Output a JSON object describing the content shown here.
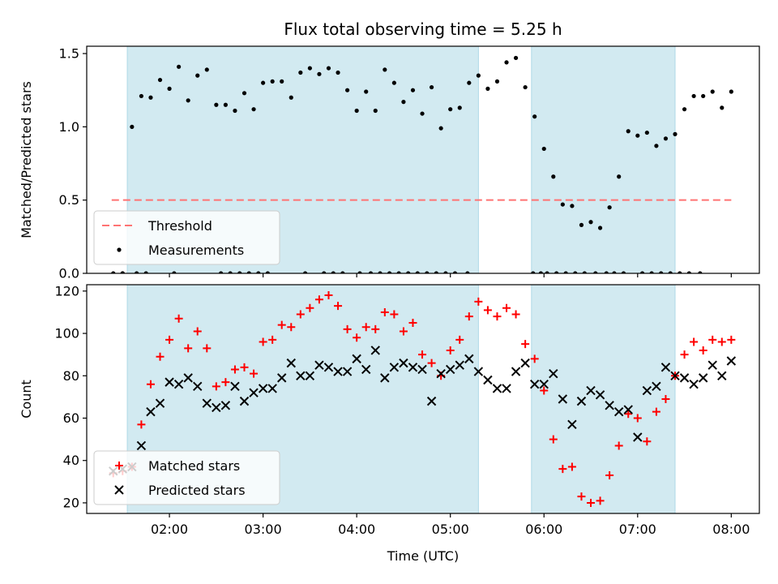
{
  "title": "Flux total observing time = 5.25 h",
  "colors": {
    "shade": "#add8e6",
    "threshold": "#ff7373",
    "matched": "#ff0000",
    "predicted": "#000000",
    "measurement": "#000000"
  },
  "chart_data": [
    {
      "type": "scatter",
      "ylabel": "Matched/Predicted stars",
      "xlim": [
        "01:07",
        "08:18"
      ],
      "ylim": [
        0,
        1.55
      ],
      "yticks": [
        "0.0",
        "0.5",
        "1.0",
        "1.5"
      ],
      "shaded_intervals": [
        [
          "01:33",
          "05:18"
        ],
        [
          "05:52",
          "07:24"
        ]
      ],
      "threshold": {
        "y": 0.5,
        "x_range": [
          "01:23",
          "08:00"
        ]
      },
      "legend": {
        "placement": "lower-left",
        "entries": [
          "Threshold",
          "Measurements"
        ]
      },
      "series": [
        {
          "name": "Measurements",
          "x": [
            "01:24",
            "01:30",
            "01:36",
            "01:42",
            "01:48",
            "01:54",
            "02:00",
            "02:06",
            "02:12",
            "02:18",
            "02:24",
            "02:30",
            "02:36",
            "02:42",
            "02:48",
            "02:54",
            "03:00",
            "03:06",
            "03:12",
            "03:18",
            "03:24",
            "03:30",
            "03:36",
            "03:42",
            "03:48",
            "03:54",
            "04:00",
            "04:06",
            "04:12",
            "04:18",
            "04:24",
            "04:30",
            "04:36",
            "04:42",
            "04:48",
            "04:54",
            "05:00",
            "05:06",
            "05:12",
            "05:18",
            "05:24",
            "05:30",
            "05:36",
            "05:42",
            "05:48",
            "05:54",
            "06:00",
            "06:06",
            "06:12",
            "06:18",
            "06:24",
            "06:30",
            "06:36",
            "06:42",
            "06:48",
            "06:54",
            "07:00",
            "07:06",
            "07:12",
            "07:18",
            "07:24",
            "07:30",
            "07:36",
            "07:42",
            "07:48",
            "07:54",
            "08:00",
            "01:30",
            "01:39",
            "01:45",
            "02:03",
            "05:53",
            "06:33",
            "06:45",
            "06:51",
            "07:03",
            "07:15",
            "07:21",
            "07:27",
            "05:58",
            "06:02",
            "06:08",
            "06:14",
            "06:20",
            "06:26",
            "06:40",
            "07:09",
            "07:33",
            "07:40",
            "05:03",
            "05:11",
            "03:03",
            "02:57",
            "02:51",
            "02:45",
            "02:39",
            "02:33",
            "03:27",
            "03:39",
            "03:45",
            "03:51",
            "04:02",
            "04:09",
            "04:15",
            "04:21",
            "04:27",
            "04:33",
            "04:39",
            "04:45",
            "04:51",
            "04:57"
          ],
          "y": [
            0.0,
            0.0,
            1.0,
            1.21,
            1.2,
            1.32,
            1.26,
            1.41,
            1.18,
            1.35,
            1.39,
            1.15,
            1.15,
            1.11,
            1.23,
            1.12,
            1.3,
            1.31,
            1.31,
            1.2,
            1.37,
            1.4,
            1.36,
            1.4,
            1.37,
            1.25,
            1.11,
            1.24,
            1.11,
            1.39,
            1.3,
            1.17,
            1.25,
            1.09,
            1.27,
            0.99,
            1.12,
            1.13,
            1.3,
            1.35,
            1.26,
            1.31,
            1.44,
            1.47,
            1.27,
            1.07,
            0.85,
            0.66,
            0.47,
            0.46,
            0.33,
            0.35,
            0.31,
            0.45,
            0.66,
            0.97,
            0.94,
            0.96,
            0.87,
            0.92,
            0.95,
            1.12,
            1.21,
            1.21,
            1.24,
            1.13,
            1.24,
            0.0,
            0.0,
            0.0,
            0.0,
            0.0,
            0.0,
            0.0,
            0.0,
            0.0,
            0.0,
            0.0,
            0.0,
            0.0,
            0.0,
            0.0,
            0.0,
            0.0,
            0.0,
            0.0,
            0.0,
            0.0,
            0.0,
            0.0,
            0.0,
            0.0,
            0.0,
            0.0,
            0.0,
            0.0,
            0.0,
            0.0,
            0.0,
            0.0,
            0.0,
            0.0,
            0.0,
            0.0,
            0.0,
            0.0,
            0.0,
            0.0,
            0.0,
            0.0,
            0.0
          ]
        }
      ]
    },
    {
      "type": "scatter",
      "xlabel": "Time (UTC)",
      "ylabel": "Count",
      "xlim": [
        "01:07",
        "08:18"
      ],
      "ylim": [
        15,
        123
      ],
      "yticks": [
        "20",
        "40",
        "60",
        "80",
        "100",
        "120"
      ],
      "xticks": [
        "02:00",
        "03:00",
        "04:00",
        "05:00",
        "06:00",
        "07:00",
        "08:00"
      ],
      "shaded_intervals": [
        [
          "01:33",
          "05:18"
        ],
        [
          "05:52",
          "07:24"
        ]
      ],
      "legend": {
        "placement": "lower-left",
        "entries": [
          "Matched stars",
          "Predicted stars"
        ]
      },
      "series": [
        {
          "name": "Matched stars",
          "x": [
            "01:24",
            "01:30",
            "01:36",
            "01:42",
            "01:48",
            "01:54",
            "02:00",
            "02:06",
            "02:12",
            "02:18",
            "02:24",
            "02:30",
            "02:36",
            "02:42",
            "02:48",
            "02:54",
            "03:00",
            "03:06",
            "03:12",
            "03:18",
            "03:24",
            "03:30",
            "03:36",
            "03:42",
            "03:48",
            "03:54",
            "04:00",
            "04:06",
            "04:12",
            "04:18",
            "04:24",
            "04:30",
            "04:36",
            "04:42",
            "04:48",
            "04:54",
            "05:00",
            "05:06",
            "05:12",
            "05:18",
            "05:24",
            "05:30",
            "05:36",
            "05:42",
            "05:48",
            "05:54",
            "06:00",
            "06:06",
            "06:12",
            "06:18",
            "06:24",
            "06:30",
            "06:36",
            "06:42",
            "06:48",
            "06:54",
            "07:00",
            "07:06",
            "07:12",
            "07:18",
            "07:24",
            "07:30",
            "07:36",
            "07:42",
            "07:48",
            "07:54",
            "08:00"
          ],
          "y": [
            34,
            35,
            37,
            57,
            76,
            89,
            97,
            107,
            93,
            101,
            93,
            75,
            77,
            83,
            84,
            81,
            96,
            97,
            104,
            103,
            109,
            112,
            116,
            118,
            113,
            102,
            98,
            103,
            102,
            110,
            109,
            101,
            105,
            90,
            86,
            80,
            92,
            97,
            108,
            115,
            111,
            108,
            112,
            109,
            95,
            88,
            73,
            50,
            36,
            37,
            23,
            20,
            21,
            33,
            47,
            62,
            60,
            49,
            63,
            69,
            80,
            90,
            96,
            92,
            97,
            96,
            97
          ]
        },
        {
          "name": "Predicted stars",
          "x": [
            "01:24",
            "01:30",
            "01:36",
            "01:42",
            "01:48",
            "01:54",
            "02:00",
            "02:06",
            "02:12",
            "02:18",
            "02:24",
            "02:30",
            "02:36",
            "02:42",
            "02:48",
            "02:54",
            "03:00",
            "03:06",
            "03:12",
            "03:18",
            "03:24",
            "03:30",
            "03:36",
            "03:42",
            "03:48",
            "03:54",
            "04:00",
            "04:06",
            "04:12",
            "04:18",
            "04:24",
            "04:30",
            "04:36",
            "04:42",
            "04:48",
            "04:54",
            "05:00",
            "05:06",
            "05:12",
            "05:18",
            "05:24",
            "05:30",
            "05:36",
            "05:42",
            "05:48",
            "05:54",
            "06:00",
            "06:06",
            "06:12",
            "06:18",
            "06:24",
            "06:30",
            "06:36",
            "06:42",
            "06:48",
            "06:54",
            "07:00",
            "07:06",
            "07:12",
            "07:18",
            "07:24",
            "07:30",
            "07:36",
            "07:42",
            "07:48",
            "07:54",
            "08:00"
          ],
          "y": [
            35,
            36,
            37,
            47,
            63,
            67,
            77,
            76,
            79,
            75,
            67,
            65,
            66,
            75,
            68,
            72,
            74,
            74,
            79,
            86,
            80,
            80,
            85,
            84,
            82,
            82,
            88,
            83,
            92,
            79,
            84,
            86,
            84,
            83,
            68,
            81,
            83,
            85,
            88,
            82,
            78,
            74,
            74,
            82,
            86,
            76,
            76,
            81,
            69,
            57,
            68,
            73,
            71,
            66,
            63,
            64,
            51,
            73,
            75,
            84,
            80,
            79,
            76,
            79,
            85,
            80,
            87
          ]
        }
      ]
    }
  ]
}
